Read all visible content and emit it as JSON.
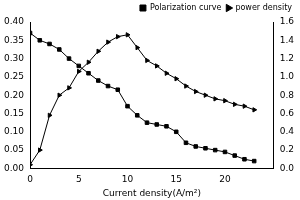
{
  "chart_data": {
    "type": "line",
    "x_label": "Current density(A/m²)",
    "x": [
      0,
      1,
      2,
      3,
      4,
      5,
      6,
      7,
      8,
      9,
      10,
      11,
      12,
      13,
      14,
      15,
      16,
      17,
      18,
      19,
      20,
      21,
      22,
      23
    ],
    "series": [
      {
        "name": "Polarization curve",
        "color": "#000000",
        "marker": "square",
        "line_style": "solid",
        "axis": "y",
        "values": [
          0.37,
          0.35,
          0.34,
          0.325,
          0.3,
          0.28,
          0.26,
          0.24,
          0.225,
          0.215,
          0.17,
          0.145,
          0.125,
          0.12,
          0.115,
          0.1,
          0.07,
          0.06,
          0.055,
          0.05,
          0.045,
          0.035,
          0.025,
          0.02
        ]
      },
      {
        "name": "power density",
        "color": "#000000",
        "marker": "triangle-right",
        "line_style": "solid",
        "axis": "y2",
        "values": [
          0.04,
          0.2,
          0.58,
          0.8,
          0.88,
          1.06,
          1.16,
          1.28,
          1.38,
          1.44,
          1.46,
          1.32,
          1.18,
          1.12,
          1.04,
          0.98,
          0.9,
          0.84,
          0.8,
          0.76,
          0.74,
          0.7,
          0.68,
          0.64
        ]
      }
    ],
    "xlim": [
      0,
      25
    ],
    "xticks": [
      0,
      5,
      10,
      15,
      20
    ],
    "ylim": [
      0,
      0.4
    ],
    "yticks": [
      {
        "value": 0,
        "label": "0.00"
      },
      {
        "value": 0.05,
        "label": "0.05"
      },
      {
        "value": 0.1,
        "label": "0.10"
      },
      {
        "value": 0.15,
        "label": "0.15"
      },
      {
        "value": 0.2,
        "label": "0.20"
      },
      {
        "value": 0.25,
        "label": "0.25"
      },
      {
        "value": 0.3,
        "label": "0.30"
      },
      {
        "value": 0.35,
        "label": "0.35"
      },
      {
        "value": 0.4,
        "label": "0.40"
      }
    ],
    "y2lim": [
      0,
      1.6
    ],
    "y2ticks": [
      {
        "value": 0,
        "label": "0.0"
      },
      0.2,
      0.4,
      0.6,
      0.8,
      {
        "value": 1,
        "label": "1.0"
      },
      1.2,
      1.4,
      1.6
    ],
    "grid": false,
    "legend": "top-right"
  }
}
